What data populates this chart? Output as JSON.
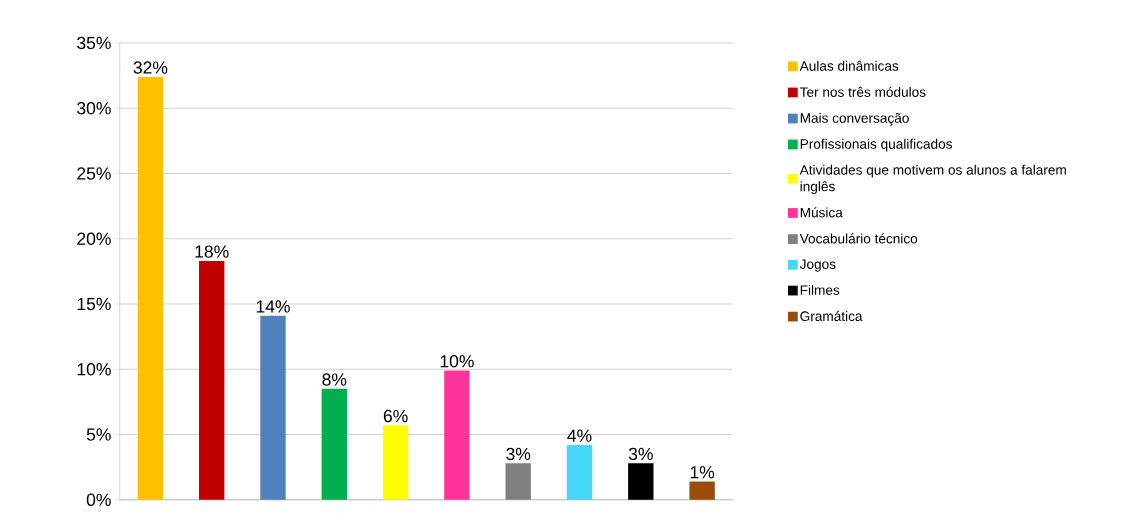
{
  "chart_data": {
    "type": "bar",
    "categories": [
      null,
      null,
      null,
      null,
      null,
      null,
      null,
      null,
      null,
      null
    ],
    "series": [
      {
        "name": "Aulas dinâmicas",
        "color": "#ffc000",
        "values": [
          32.4,
          null,
          null,
          null,
          null,
          null,
          null,
          null,
          null,
          null
        ],
        "value_labels": [
          "32%",
          null,
          null,
          null,
          null,
          null,
          null,
          null,
          null,
          null
        ]
      },
      {
        "name": "Ter nos três módulos",
        "color": "#c00000",
        "values": [
          null,
          18.3,
          null,
          null,
          null,
          null,
          null,
          null,
          null,
          null
        ],
        "value_labels": [
          null,
          "18%",
          null,
          null,
          null,
          null,
          null,
          null,
          null,
          null
        ]
      },
      {
        "name": "Mais conversação",
        "color": "#4f81bd",
        "values": [
          null,
          null,
          14.1,
          null,
          null,
          null,
          null,
          null,
          null,
          null
        ],
        "value_labels": [
          null,
          null,
          "14%",
          null,
          null,
          null,
          null,
          null,
          null,
          null
        ]
      },
      {
        "name": "Profissionais qualificados",
        "color": "#00b050",
        "values": [
          null,
          null,
          null,
          8.5,
          null,
          null,
          null,
          null,
          null,
          null
        ],
        "value_labels": [
          null,
          null,
          null,
          "8%",
          null,
          null,
          null,
          null,
          null,
          null
        ]
      },
      {
        "name": "Atividades que motivem os alunos a falarem inglês",
        "color": "#ffff00",
        "values": [
          null,
          null,
          null,
          null,
          5.7,
          null,
          null,
          null,
          null,
          null
        ],
        "value_labels": [
          null,
          null,
          null,
          null,
          "6%",
          null,
          null,
          null,
          null,
          null
        ]
      },
      {
        "name": "Música",
        "color": "#ff3399",
        "values": [
          null,
          null,
          null,
          null,
          null,
          9.9,
          null,
          null,
          null,
          null
        ],
        "value_labels": [
          null,
          null,
          null,
          null,
          null,
          "10%",
          null,
          null,
          null,
          null
        ]
      },
      {
        "name": "Vocabulário técnico",
        "color": "#808080",
        "values": [
          null,
          null,
          null,
          null,
          null,
          null,
          2.8,
          null,
          null,
          null
        ],
        "value_labels": [
          null,
          null,
          null,
          null,
          null,
          null,
          "3%",
          null,
          null,
          null
        ]
      },
      {
        "name": "Jogos",
        "color": "#47d7f9",
        "values": [
          null,
          null,
          null,
          null,
          null,
          null,
          null,
          4.2,
          null,
          null
        ],
        "value_labels": [
          null,
          null,
          null,
          null,
          null,
          null,
          null,
          "4%",
          null,
          null
        ]
      },
      {
        "name": "Filmes",
        "color": "#000000",
        "values": [
          null,
          null,
          null,
          null,
          null,
          null,
          null,
          null,
          2.8,
          null
        ],
        "value_labels": [
          null,
          null,
          null,
          null,
          null,
          null,
          null,
          null,
          "3%",
          null
        ]
      },
      {
        "name": "Gramática",
        "color": "#994c0c",
        "values": [
          null,
          null,
          null,
          null,
          null,
          null,
          null,
          null,
          null,
          1.4
        ],
        "value_labels": [
          null,
          null,
          null,
          null,
          null,
          null,
          null,
          null,
          null,
          "1%"
        ]
      }
    ],
    "ylim": [
      0,
      35
    ],
    "yticks": [
      {
        "value": 0,
        "label": "0%"
      },
      {
        "value": 5,
        "label": "5%"
      },
      {
        "value": 10,
        "label": "10%"
      },
      {
        "value": 15,
        "label": "15%"
      },
      {
        "value": 20,
        "label": "20%"
      },
      {
        "value": 25,
        "label": "25%"
      },
      {
        "value": 30,
        "label": "30%"
      },
      {
        "value": 35,
        "label": "35%"
      }
    ],
    "grid": "y",
    "legend": "right"
  }
}
